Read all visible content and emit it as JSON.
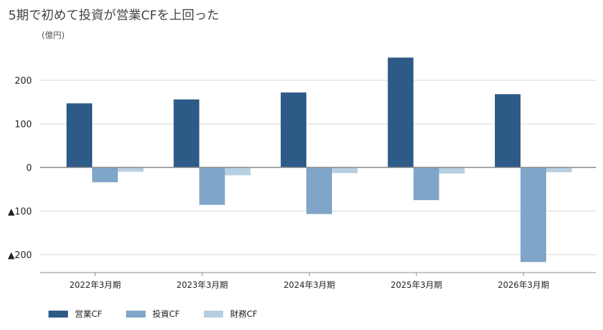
{
  "chart_data": {
    "type": "bar",
    "title": "5期で初めて投資が営業CFを上回った",
    "unit_label": "(億円)",
    "categories": [
      "2022年3月期",
      "2023年3月期",
      "2024年3月期",
      "2025年3月期",
      "2026年3月期"
    ],
    "series": [
      {
        "name": "営業CF",
        "color": "#2e5a87",
        "values": [
          147,
          156,
          172,
          252,
          168
        ]
      },
      {
        "name": "投資CF",
        "color": "#7fa5c9",
        "values": [
          -34,
          -86,
          -107,
          -75,
          -217
        ]
      },
      {
        "name": "財務CF",
        "color": "#b7cfe1",
        "values": [
          -10,
          -18,
          -13,
          -14,
          -11
        ]
      }
    ],
    "ylim": [
      -240,
      300
    ],
    "yticks": [
      200,
      100,
      0,
      -100,
      -200
    ],
    "ytick_labels": [
      "200",
      "100",
      "0",
      "▲100",
      "▲200"
    ],
    "grid": true,
    "legend_position": "bottom-left"
  }
}
